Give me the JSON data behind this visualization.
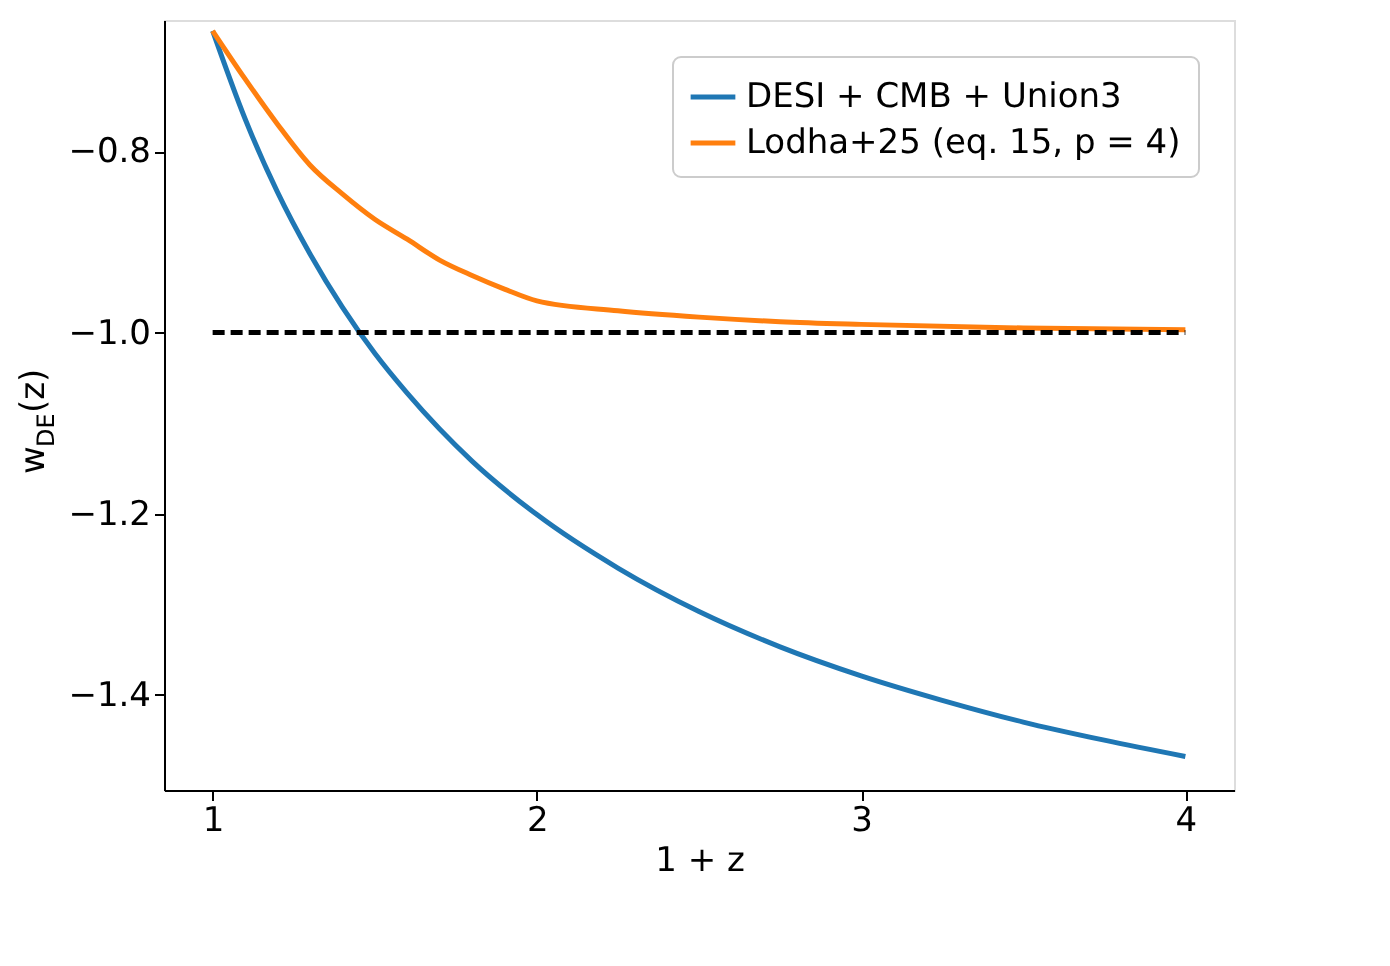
{
  "chart_data": {
    "type": "line",
    "xlabel": "1 + z",
    "ylabel": "w$_{DE}$(z)",
    "xlim": [
      0.85,
      4.15
    ],
    "ylim": [
      -1.505,
      -0.655
    ],
    "xticks": [
      1,
      2,
      3,
      4
    ],
    "yticks": [
      {
        "value": -1.4,
        "label": "−1.4"
      },
      {
        "value": -1.2,
        "label": "−1.2"
      },
      {
        "value": -1.0,
        "label": "−1.0"
      },
      {
        "value": -0.8,
        "label": "−0.8"
      }
    ],
    "grid": false,
    "legend": "top right",
    "line_style": "solid",
    "marker": "none",
    "series": [
      {
        "name": "DESI + CMB + Union3",
        "color": "#1f77b4",
        "x": [
          1,
          1.1,
          1.2,
          1.3,
          1.4,
          1.5,
          1.6,
          1.8,
          2,
          2.25,
          2.5,
          2.75,
          3,
          3.25,
          3.5,
          3.75,
          4
        ],
        "values": [
          -0.667,
          -0.764,
          -0.845,
          -0.913,
          -0.972,
          -1.023,
          -1.067,
          -1.142,
          -1.201,
          -1.26,
          -1.308,
          -1.347,
          -1.379,
          -1.406,
          -1.43,
          -1.45,
          -1.468
        ]
      },
      {
        "name": "Lodha+25 (eq. 15, p = 4)",
        "color": "#ff7f0e",
        "x": [
          1,
          1.1,
          1.2,
          1.3,
          1.4,
          1.5,
          1.6,
          1.7,
          1.8,
          1.9,
          2,
          2.25,
          2.5,
          2.75,
          3,
          3.5,
          4
        ],
        "values": [
          -0.667,
          -0.72,
          -0.77,
          -0.815,
          -0.847,
          -0.875,
          -0.897,
          -0.92,
          -0.937,
          -0.952,
          -0.965,
          -0.976,
          -0.983,
          -0.988,
          -0.991,
          -0.995,
          -0.997
        ]
      },
      {
        "color": "#000000",
        "line_style": "dashed",
        "x": [
          1,
          4
        ],
        "values": [
          -1.0,
          -1.0
        ]
      }
    ]
  }
}
